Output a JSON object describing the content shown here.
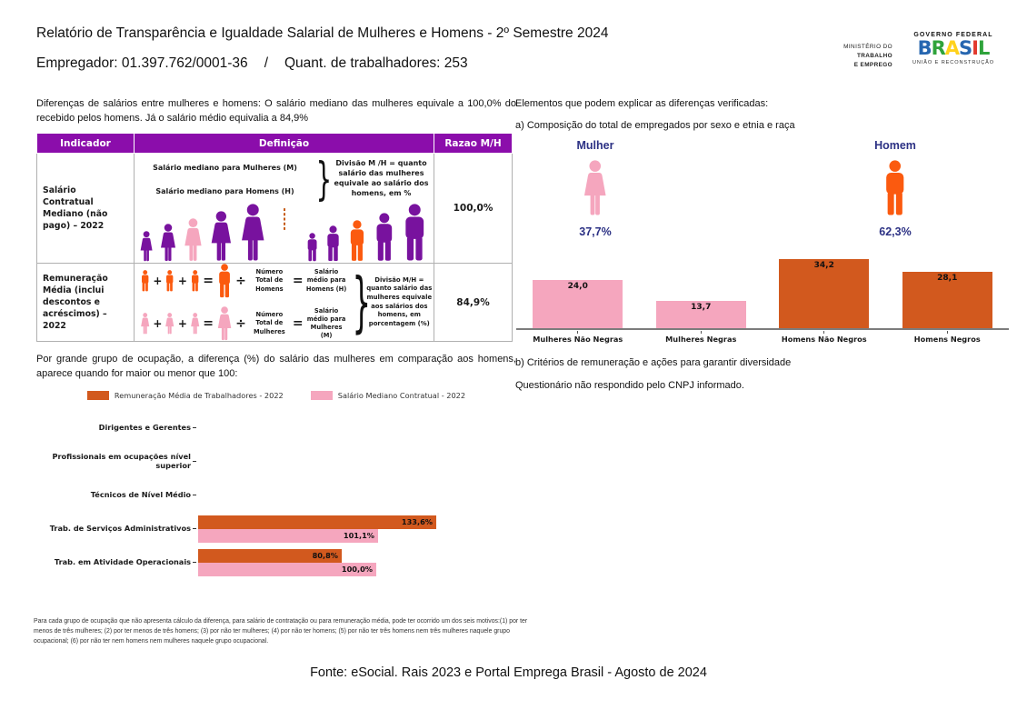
{
  "header": {
    "title": "Relatório de Transparência e Igualdade Salarial de Mulheres e Homens - 2º Semestre 2024",
    "employer": "Empregador: 01.397.762/0001-36",
    "separator": "/",
    "workers": "Quant. de trabalhadores: 253"
  },
  "logos": {
    "ministry_lines": [
      "MINISTÉRIO DO",
      "TRABALHO",
      "E EMPREGO"
    ],
    "gov_top": "GOVERNO FEDERAL",
    "brasil_letters": [
      {
        "ch": "B",
        "color": "#2666B0"
      },
      {
        "ch": "R",
        "color": "#2FA33B"
      },
      {
        "ch": "A",
        "color": "#FFD21C"
      },
      {
        "ch": "S",
        "color": "#2666B0"
      },
      {
        "ch": "I",
        "color": "#E23A2E"
      },
      {
        "ch": "L",
        "color": "#2FA33B"
      }
    ],
    "gov_bottom": "UNIÃO E RECONSTRUÇÃO"
  },
  "left": {
    "intro": "Diferenças de salários entre mulheres e homens: O salário mediano das mulheres equivale a 100,0% do recebido pelos homens. Já o salário médio equivalia a 84,9%",
    "table": {
      "headers": [
        "Indicador",
        "Definição",
        "Razao M/H"
      ],
      "rows": [
        {
          "indicator": "Salário Contratual Mediano (não pago) – 2022",
          "def_line1": "Salário mediano para Mulheres (M)",
          "def_line2": "Salário mediano para Homens (H)",
          "def_note": "Divisão M /H = quanto salário das mulheres equivale ao salário dos homens, em %",
          "ratio": "100,0%"
        },
        {
          "indicator": "Remuneração Média (inclui descontos e acréscimos) – 2022",
          "def_note": "Divisão M/H = quanto salário das mulheres equivale aos salários dos homens, em porcentagem (%)",
          "ratio": "84,9%"
        }
      ],
      "row1_pictogram": {
        "women": [
          {
            "color": "#78129E",
            "h": 34
          },
          {
            "color": "#78129E",
            "h": 42
          },
          {
            "color": "#F5A6BE",
            "h": 48
          },
          {
            "color": "#78129E",
            "h": 56
          },
          {
            "color": "#78129E",
            "h": 64
          }
        ],
        "men": [
          {
            "color": "#78129E",
            "h": 32
          },
          {
            "color": "#78129E",
            "h": 40
          },
          {
            "color": "#FB5A0F",
            "h": 46
          },
          {
            "color": "#78129E",
            "h": 54
          },
          {
            "color": "#78129E",
            "h": 64
          }
        ],
        "dash_color": "#C55A11"
      },
      "row2_equations": [
        {
          "sex": "m",
          "color": "#FB5A0F",
          "divisor": "Número Total de Homens",
          "result": "Salário médio para Homens (H)"
        },
        {
          "sex": "f",
          "color": "#F5A6BE",
          "divisor": "Número Total de Mulheres",
          "result": "Salário médio para Mulheres (M)"
        }
      ]
    },
    "occupation_intro": "Por grande grupo de ocupação, a diferença (%) do salário das mulheres em comparação aos homens, aparece quando for maior ou menor que 100:",
    "footnote": "Para cada grupo de ocupação que não apresenta cálculo da diferença, para salário de contratação ou para remuneração média, pode ter ocorrido um dos seis motivos:(1) por ter menos de três mulheres; (2) por ter menos de três homens; (3) por não ter mulheres; (4) por não ter homens; (5) por não ter três homens nem três mulheres naquele grupo ocupacional; (6) por não ter nem homens nem mulheres naquele grupo ocupacional."
  },
  "right": {
    "heading": "Elementos que podem explicar as diferenças verificadas:",
    "item_a": "a) Composição do total de empregados por sexo e etnia e raça",
    "mulher": {
      "label": "Mulher",
      "pct": "37,7%",
      "color": "#F5A6BE"
    },
    "homem": {
      "label": "Homem",
      "pct": "62,3%",
      "color": "#FB5A0F"
    },
    "item_b": "b) Critérios de remuneração e ações para garantir diversidade",
    "item_b_text": "Questionário não respondido pelo CNPJ informado."
  },
  "footer": "Fonte: eSocial. Rais 2023 e Portal Emprega Brasil - Agosto de 2024",
  "glyphs": {
    "brace": "}",
    "plus": "+",
    "equals": "=",
    "divide": "÷"
  },
  "colors": {
    "header_purple": "#8B0DAB",
    "icon_purple": "#78129E",
    "pink": "#F5A6BE",
    "orange_bright": "#FB5A0F",
    "orange_dark": "#D2591E",
    "navy": "#2C3184",
    "axis_gray": "#7C7C7C"
  },
  "chart_data": [
    {
      "type": "bar",
      "title": "Composição do total de empregados por sexo e etnia e raça",
      "categories": [
        "Mulheres Não Negras",
        "Mulheres Negras",
        "Homens Não Negros",
        "Homens Negros"
      ],
      "values": [
        24.0,
        13.7,
        34.2,
        28.1
      ],
      "value_labels": [
        "24,0",
        "13,7",
        "34,2",
        "28,1"
      ],
      "colors": [
        "#F5A6BE",
        "#F5A6BE",
        "#D2591E",
        "#D2591E"
      ],
      "xlabel": "",
      "ylabel": "",
      "ylim": [
        0,
        40
      ],
      "grid": false,
      "value_label_position": "inside-top",
      "gender_split": {
        "mulher": 37.7,
        "homem": 62.3
      }
    },
    {
      "type": "bar",
      "orientation": "horizontal",
      "title": "Diferença (%) do salário das mulheres em comparação aos homens, por grande grupo de ocupação",
      "categories": [
        "Dirigentes e Gerentes",
        "Profissionais em ocupações nível superior",
        "Técnicos de Nível Médio",
        "Trab. de Serviços Administrativos",
        "Trab. em Atividade Operacionais"
      ],
      "series": [
        {
          "name": "Remuneração Média de Trabalhadores - 2022",
          "color": "#D2591E",
          "values": [
            null,
            null,
            null,
            133.6,
            80.8
          ],
          "value_labels": [
            "",
            "",
            "",
            "133,6%",
            "80,8%"
          ]
        },
        {
          "name": "Salário Mediano Contratual - 2022",
          "color": "#F5A6BE",
          "values": [
            null,
            null,
            null,
            101.1,
            100.0
          ],
          "value_labels": [
            "",
            "",
            "",
            "101,1%",
            "100,0%"
          ]
        }
      ],
      "xlim": [
        0,
        140
      ],
      "grid": false,
      "legend_position": "top"
    }
  ]
}
